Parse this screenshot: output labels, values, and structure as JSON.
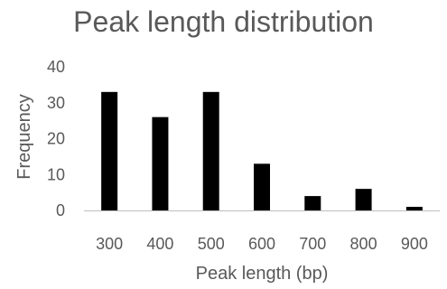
{
  "chart_data": {
    "type": "bar",
    "title": "Peak length distribution",
    "xlabel": "Peak length (bp)",
    "ylabel": "Frequency",
    "categories": [
      "300",
      "400",
      "500",
      "600",
      "700",
      "800",
      "900"
    ],
    "values": [
      33,
      26,
      33,
      13,
      4,
      6,
      1
    ],
    "ylim": [
      0,
      40
    ],
    "yticks": [
      "0",
      "10",
      "20",
      "30",
      "40"
    ],
    "grid": false,
    "legend": "none",
    "bar_color": "#000000",
    "axis_color": "#bfbfbf",
    "text_color": "#595959"
  }
}
